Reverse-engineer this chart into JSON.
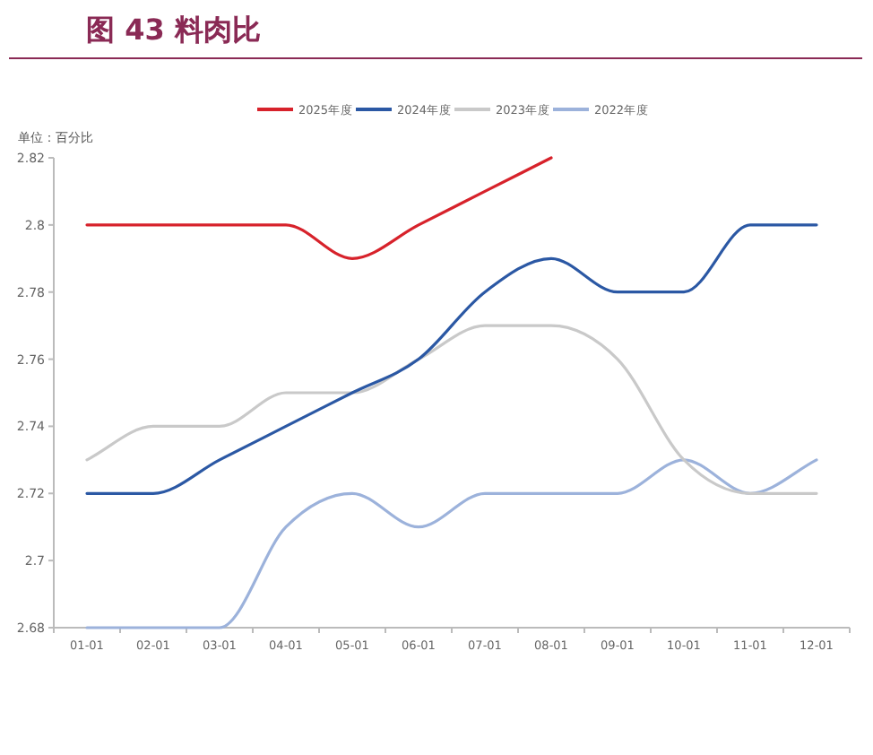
{
  "chart_data": {
    "type": "line",
    "title": "图 43 料肉比",
    "subtitle": "单位：百分比",
    "categories": [
      "01-01",
      "02-01",
      "03-01",
      "04-01",
      "05-01",
      "06-01",
      "07-01",
      "08-01",
      "09-01",
      "10-01",
      "11-01",
      "12-01"
    ],
    "series": [
      {
        "name": "2025年度",
        "color": "#d7222b",
        "values": [
          2.8,
          2.8,
          2.8,
          2.8,
          2.79,
          2.8,
          2.81,
          2.82,
          null,
          null,
          null,
          null
        ]
      },
      {
        "name": "2024年度",
        "color": "#2b58a4",
        "values": [
          2.72,
          2.72,
          2.73,
          2.74,
          2.75,
          2.76,
          2.78,
          2.79,
          2.78,
          2.78,
          2.8,
          2.8
        ]
      },
      {
        "name": "2023年度",
        "color": "#c9c9c9",
        "values": [
          2.73,
          2.74,
          2.74,
          2.75,
          2.75,
          2.76,
          2.77,
          2.77,
          2.76,
          2.73,
          2.72,
          2.72
        ]
      },
      {
        "name": "2022年度",
        "color": "#9cb2db",
        "values": [
          2.68,
          2.68,
          2.68,
          2.71,
          2.72,
          2.71,
          2.72,
          2.72,
          2.72,
          2.73,
          2.72,
          2.73
        ]
      }
    ],
    "ylim": [
      2.68,
      2.82
    ],
    "yticks": [
      2.68,
      2.7,
      2.72,
      2.74,
      2.76,
      2.78,
      2.8,
      2.82
    ],
    "legend": "top",
    "grid": false,
    "marker": "none",
    "line_style": "solid"
  }
}
